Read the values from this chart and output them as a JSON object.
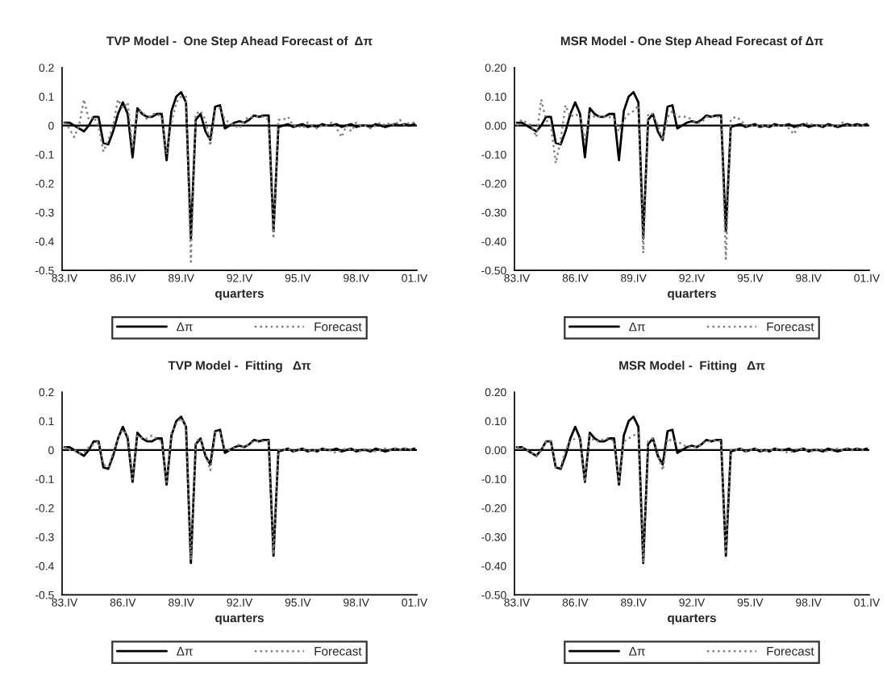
{
  "chart_data": [
    {
      "type": "line",
      "title": "TVP Model -  One Step Ahead Forecast of  Δπ",
      "xlabel": "quarters",
      "categories": [
        "83.IV",
        null,
        null,
        null,
        null,
        null,
        null,
        null,
        null,
        null,
        null,
        null,
        "86.IV",
        null,
        null,
        null,
        null,
        null,
        null,
        null,
        null,
        null,
        null,
        null,
        "89.IV",
        null,
        null,
        null,
        null,
        null,
        null,
        null,
        null,
        null,
        null,
        null,
        "92.IV",
        null,
        null,
        null,
        null,
        null,
        null,
        null,
        null,
        null,
        null,
        null,
        "95.IV",
        null,
        null,
        null,
        null,
        null,
        null,
        null,
        null,
        null,
        null,
        null,
        "98.IV",
        null,
        null,
        null,
        null,
        null,
        null,
        null,
        null,
        null,
        null,
        null,
        "01.IV"
      ],
      "ylim": [
        -0.5,
        0.2
      ],
      "yticks": [
        0.2,
        0.1,
        0,
        -0.1,
        -0.2,
        -0.3,
        -0.4,
        -0.5
      ],
      "legend": "bottom",
      "ref_lines": [
        {
          "axis": "y",
          "value": 0,
          "color": "#000000"
        }
      ],
      "series": [
        {
          "name": "Δπ",
          "color": "#000000",
          "line_style": "solid",
          "values": [
            0.01,
            0.01,
            0.0,
            -0.01,
            -0.02,
            0.0,
            0.03,
            0.03,
            -0.06,
            -0.065,
            -0.02,
            0.04,
            0.08,
            0.04,
            -0.11,
            0.06,
            0.04,
            0.03,
            0.03,
            0.04,
            0.04,
            -0.12,
            0.05,
            0.1,
            0.115,
            0.08,
            -0.39,
            0.02,
            0.04,
            -0.02,
            -0.05,
            0.065,
            0.07,
            -0.01,
            0.0,
            0.01,
            0.015,
            0.01,
            0.02,
            0.035,
            0.03,
            0.035,
            0.035,
            -0.365,
            -0.005,
            0.0,
            0.005,
            -0.005,
            0.0,
            0.005,
            -0.005,
            0.0,
            -0.005,
            0.005,
            0.0,
            0.0,
            0.005,
            -0.005,
            0.0,
            0.005,
            -0.005,
            0.0,
            0.0,
            -0.005,
            0.005,
            0.0,
            -0.005,
            0.0,
            0.005,
            0.0,
            0.005,
            0.0,
            0.005
          ]
        },
        {
          "name": "Forecast",
          "color": "#808080",
          "line_style": "dotted",
          "values": [
            0.01,
            -0.01,
            -0.04,
            0.0,
            0.09,
            0.02,
            0.03,
            0.0,
            -0.09,
            -0.05,
            0.0,
            0.09,
            0.06,
            0.08,
            -0.08,
            0.05,
            0.05,
            0.02,
            0.04,
            0.04,
            0.03,
            -0.1,
            0.01,
            0.08,
            0.1,
            0.1,
            -0.47,
            0.04,
            0.05,
            0.02,
            -0.07,
            0.05,
            0.06,
            0.02,
            0.01,
            0.0,
            -0.01,
            0.02,
            0.03,
            0.03,
            0.03,
            0.03,
            0.02,
            -0.39,
            0.02,
            0.02,
            0.03,
            0.0,
            0.0,
            -0.01,
            0.01,
            0.0,
            -0.01,
            0.0,
            0.0,
            0.01,
            -0.01,
            -0.04,
            0.0,
            -0.02,
            0.01,
            0.0,
            0.0,
            -0.01,
            0.0,
            0.01,
            0.0,
            0.01,
            0.0,
            0.02,
            0.0,
            0.01,
            0.01
          ]
        }
      ]
    },
    {
      "type": "line",
      "title": "MSR Model - One Step Ahead Forecast of Δπ",
      "xlabel": "quarters",
      "categories": [
        "83.IV",
        null,
        null,
        null,
        null,
        null,
        null,
        null,
        null,
        null,
        null,
        null,
        "86.IV",
        null,
        null,
        null,
        null,
        null,
        null,
        null,
        null,
        null,
        null,
        null,
        "89.IV",
        null,
        null,
        null,
        null,
        null,
        null,
        null,
        null,
        null,
        null,
        null,
        "92.IV",
        null,
        null,
        null,
        null,
        null,
        null,
        null,
        null,
        null,
        null,
        null,
        "95.IV",
        null,
        null,
        null,
        null,
        null,
        null,
        null,
        null,
        null,
        null,
        null,
        "98.IV",
        null,
        null,
        null,
        null,
        null,
        null,
        null,
        null,
        null,
        null,
        null,
        "01.IV"
      ],
      "ylim": [
        -0.5,
        0.2
      ],
      "yticks": [
        {
          "value": 0.2,
          "label": "0.20"
        },
        {
          "value": 0.1,
          "label": "0.10"
        },
        {
          "value": 0,
          "label": "0.00"
        },
        {
          "value": -0.1,
          "label": "-0.10"
        },
        {
          "value": -0.2,
          "label": "-0.20"
        },
        {
          "value": -0.3,
          "label": "-0.30"
        },
        {
          "value": -0.4,
          "label": "-0.40"
        },
        {
          "value": -0.5,
          "label": "-0.50"
        }
      ],
      "legend": "bottom",
      "ref_lines": [
        {
          "axis": "y",
          "value": 0,
          "color": "#000000"
        }
      ],
      "series": [
        {
          "name": "Δπ",
          "color": "#000000",
          "line_style": "solid",
          "values": [
            0.01,
            0.01,
            0.0,
            -0.01,
            -0.02,
            0.0,
            0.03,
            0.03,
            -0.06,
            -0.065,
            -0.02,
            0.04,
            0.08,
            0.04,
            -0.11,
            0.06,
            0.04,
            0.03,
            0.03,
            0.04,
            0.04,
            -0.12,
            0.05,
            0.1,
            0.115,
            0.08,
            -0.39,
            0.02,
            0.04,
            -0.02,
            -0.05,
            0.065,
            0.07,
            -0.01,
            0.0,
            0.01,
            0.015,
            0.01,
            0.02,
            0.035,
            0.03,
            0.035,
            0.035,
            -0.365,
            -0.005,
            0.0,
            0.005,
            -0.005,
            0.0,
            0.005,
            -0.005,
            0.0,
            -0.005,
            0.005,
            0.0,
            0.0,
            0.005,
            -0.005,
            0.0,
            0.005,
            -0.005,
            0.0,
            0.0,
            -0.005,
            0.005,
            0.0,
            -0.005,
            0.0,
            0.005,
            0.0,
            0.005,
            0.0,
            0.005
          ]
        },
        {
          "name": "Forecast",
          "color": "#808080",
          "line_style": "dotted",
          "values": [
            0.0,
            0.02,
            0.01,
            0.0,
            -0.04,
            0.09,
            0.02,
            0.0,
            -0.13,
            -0.05,
            0.07,
            0.03,
            0.04,
            0.03,
            -0.05,
            0.04,
            0.03,
            0.03,
            0.03,
            0.03,
            0.02,
            -0.02,
            0.02,
            0.04,
            0.05,
            0.07,
            -0.44,
            0.04,
            0.04,
            0.0,
            -0.05,
            0.03,
            0.05,
            0.03,
            0.03,
            0.03,
            0.02,
            0.01,
            0.01,
            0.03,
            0.03,
            0.03,
            0.03,
            -0.46,
            0.02,
            0.03,
            0.02,
            0.0,
            0.0,
            0.0,
            0.0,
            0.0,
            0.0,
            0.0,
            0.0,
            0.0,
            -0.01,
            -0.03,
            0.0,
            0.0,
            0.01,
            0.0,
            0.0,
            0.0,
            0.0,
            0.0,
            0.0,
            0.01,
            0.0,
            0.0,
            0.0,
            0.0,
            0.0
          ]
        }
      ]
    },
    {
      "type": "line",
      "title": "TVP Model -  Fitting   Δπ",
      "xlabel": "quarters",
      "categories": [
        "83.IV",
        null,
        null,
        null,
        null,
        null,
        null,
        null,
        null,
        null,
        null,
        null,
        "86.IV",
        null,
        null,
        null,
        null,
        null,
        null,
        null,
        null,
        null,
        null,
        null,
        "89.IV",
        null,
        null,
        null,
        null,
        null,
        null,
        null,
        null,
        null,
        null,
        null,
        "92.IV",
        null,
        null,
        null,
        null,
        null,
        null,
        null,
        null,
        null,
        null,
        null,
        "95.IV",
        null,
        null,
        null,
        null,
        null,
        null,
        null,
        null,
        null,
        null,
        null,
        "98.IV",
        null,
        null,
        null,
        null,
        null,
        null,
        null,
        null,
        null,
        null,
        null,
        "01.IV"
      ],
      "ylim": [
        -0.5,
        0.2
      ],
      "yticks": [
        0.2,
        0.1,
        0,
        -0.1,
        -0.2,
        -0.3,
        -0.4,
        -0.5
      ],
      "legend": "bottom",
      "ref_lines": [
        {
          "axis": "y",
          "value": 0,
          "color": "#000000"
        }
      ],
      "series": [
        {
          "name": "Δπ",
          "color": "#000000",
          "line_style": "solid",
          "values": [
            0.01,
            0.01,
            0.0,
            -0.01,
            -0.02,
            0.0,
            0.03,
            0.03,
            -0.06,
            -0.065,
            -0.02,
            0.04,
            0.08,
            0.04,
            -0.11,
            0.06,
            0.04,
            0.03,
            0.03,
            0.04,
            0.04,
            -0.12,
            0.05,
            0.1,
            0.115,
            0.08,
            -0.39,
            0.02,
            0.04,
            -0.02,
            -0.05,
            0.065,
            0.07,
            -0.01,
            0.0,
            0.01,
            0.015,
            0.01,
            0.02,
            0.035,
            0.03,
            0.035,
            0.035,
            -0.365,
            -0.005,
            0.0,
            0.005,
            -0.005,
            0.0,
            0.005,
            -0.005,
            0.0,
            -0.005,
            0.005,
            0.0,
            0.0,
            0.005,
            -0.005,
            0.0,
            0.005,
            -0.005,
            0.0,
            0.0,
            -0.005,
            0.005,
            0.0,
            -0.005,
            0.0,
            0.005,
            0.0,
            0.005,
            0.0,
            0.005
          ]
        },
        {
          "name": "Forecast",
          "color": "#808080",
          "line_style": "dotted",
          "values": [
            0.01,
            0.0,
            0.0,
            -0.01,
            -0.01,
            0.01,
            0.02,
            0.03,
            -0.05,
            -0.06,
            -0.01,
            0.04,
            0.07,
            0.05,
            -0.1,
            0.05,
            0.04,
            0.04,
            0.05,
            0.04,
            0.03,
            -0.11,
            0.06,
            0.09,
            0.11,
            0.08,
            -0.38,
            0.03,
            0.04,
            -0.01,
            -0.07,
            0.06,
            0.06,
            0.0,
            0.0,
            0.01,
            0.02,
            0.01,
            0.02,
            0.03,
            0.03,
            0.03,
            0.03,
            -0.36,
            0.0,
            0.0,
            0.005,
            -0.005,
            0.0,
            0.005,
            0.0,
            -0.005,
            0.0,
            0.0,
            0.005,
            -0.005,
            -0.01,
            0.0,
            0.005,
            0.0,
            0.0,
            -0.005,
            0.005,
            0.0,
            -0.005,
            0.0,
            0.005,
            0.0,
            0.005,
            0.0,
            0.005,
            0.0,
            0.005
          ]
        }
      ]
    },
    {
      "type": "line",
      "title": "MSR Model -  Fitting   Δπ",
      "xlabel": "quarters",
      "categories": [
        "83.IV",
        null,
        null,
        null,
        null,
        null,
        null,
        null,
        null,
        null,
        null,
        null,
        "86.IV",
        null,
        null,
        null,
        null,
        null,
        null,
        null,
        null,
        null,
        null,
        null,
        "89.IV",
        null,
        null,
        null,
        null,
        null,
        null,
        null,
        null,
        null,
        null,
        null,
        "92.IV",
        null,
        null,
        null,
        null,
        null,
        null,
        null,
        null,
        null,
        null,
        null,
        "95.IV",
        null,
        null,
        null,
        null,
        null,
        null,
        null,
        null,
        null,
        null,
        null,
        "98.IV",
        null,
        null,
        null,
        null,
        null,
        null,
        null,
        null,
        null,
        null,
        null,
        "01.IV"
      ],
      "ylim": [
        -0.5,
        0.2
      ],
      "yticks": [
        {
          "value": 0.2,
          "label": "0.20"
        },
        {
          "value": 0.1,
          "label": "0.10"
        },
        {
          "value": 0,
          "label": "0.00"
        },
        {
          "value": -0.1,
          "label": "-0.10"
        },
        {
          "value": -0.2,
          "label": "-0.20"
        },
        {
          "value": -0.3,
          "label": "-0.30"
        },
        {
          "value": -0.4,
          "label": "-0.40"
        },
        {
          "value": -0.5,
          "label": "-0.50"
        }
      ],
      "legend": "bottom",
      "ref_lines": [
        {
          "axis": "y",
          "value": 0,
          "color": "#000000"
        }
      ],
      "series": [
        {
          "name": "Δπ",
          "color": "#000000",
          "line_style": "solid",
          "values": [
            0.01,
            0.01,
            0.0,
            -0.01,
            -0.02,
            0.0,
            0.03,
            0.03,
            -0.06,
            -0.065,
            -0.02,
            0.04,
            0.08,
            0.04,
            -0.11,
            0.06,
            0.04,
            0.03,
            0.03,
            0.04,
            0.04,
            -0.12,
            0.05,
            0.1,
            0.115,
            0.08,
            -0.39,
            0.02,
            0.04,
            -0.02,
            -0.05,
            0.065,
            0.07,
            -0.01,
            0.0,
            0.01,
            0.015,
            0.01,
            0.02,
            0.035,
            0.03,
            0.035,
            0.035,
            -0.365,
            -0.005,
            0.0,
            0.005,
            -0.005,
            0.0,
            0.005,
            -0.005,
            0.0,
            -0.005,
            0.005,
            0.0,
            0.0,
            0.005,
            -0.005,
            0.0,
            0.005,
            -0.005,
            0.0,
            0.0,
            -0.005,
            0.005,
            0.0,
            -0.005,
            0.0,
            0.005,
            0.0,
            0.005,
            0.0,
            0.005
          ]
        },
        {
          "name": "Forecast",
          "color": "#808080",
          "line_style": "dotted",
          "values": [
            0.01,
            0.01,
            0.0,
            -0.01,
            -0.02,
            0.0,
            0.03,
            0.03,
            -0.06,
            -0.06,
            0.0,
            0.03,
            0.04,
            0.04,
            -0.11,
            0.05,
            0.03,
            0.03,
            0.04,
            0.04,
            0.03,
            -0.11,
            0.03,
            0.04,
            0.05,
            0.06,
            -0.39,
            0.03,
            0.04,
            -0.01,
            -0.07,
            0.04,
            0.03,
            0.03,
            0.02,
            0.01,
            0.01,
            0.01,
            0.02,
            0.03,
            0.03,
            0.035,
            0.03,
            -0.36,
            0.0,
            0.0,
            0.005,
            -0.005,
            0.0,
            0.005,
            0.0,
            -0.005,
            0.0,
            0.0,
            0.005,
            -0.005,
            -0.01,
            0.0,
            0.005,
            0.0,
            0.0,
            -0.005,
            0.005,
            0.0,
            -0.005,
            0.0,
            0.005,
            0.0,
            0.005,
            0.0,
            0.005,
            0.0,
            0.005
          ]
        }
      ]
    }
  ]
}
